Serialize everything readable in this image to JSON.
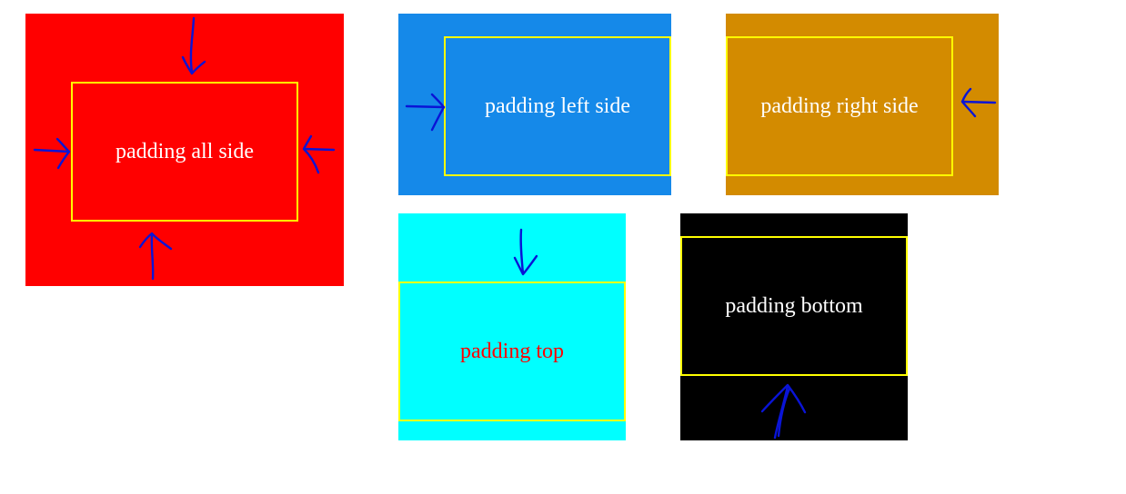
{
  "boxes": {
    "all_side": {
      "label": "padding all side",
      "bg": "#ff0000",
      "text_color": "#ffffff"
    },
    "left_side": {
      "label": "padding left side",
      "bg": "#1589e9",
      "text_color": "#ffffff"
    },
    "right_side": {
      "label": "padding right side",
      "bg": "#d38b00",
      "text_color": "#ffffff"
    },
    "top": {
      "label": "padding top",
      "bg": "#00ffff",
      "text_color": "#ff0000"
    },
    "bottom": {
      "label": "padding bottom",
      "bg": "#000000",
      "text_color": "#ffffff"
    }
  },
  "colors": {
    "inner_border": "#ffff00",
    "arrow": "#0a14d6"
  },
  "icons": [
    "arrow-down-icon",
    "arrow-right-icon",
    "arrow-left-icon",
    "arrow-up-icon"
  ]
}
